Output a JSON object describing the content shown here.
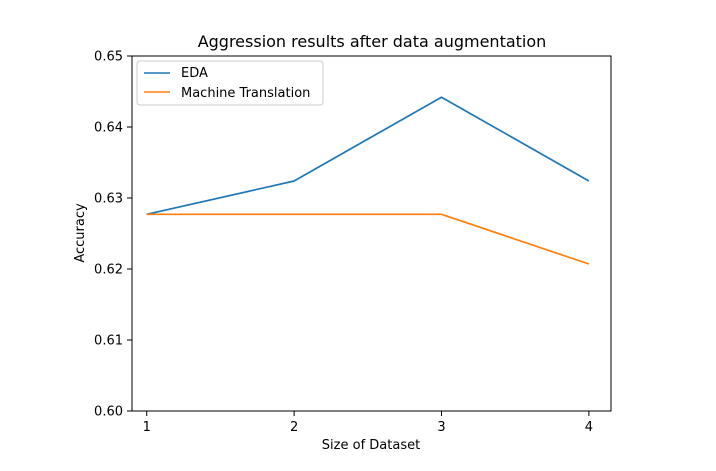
{
  "chart_data": {
    "type": "line",
    "title": "Aggression results after data augmentation",
    "xlabel": "Size of Dataset",
    "ylabel": "Accuracy",
    "x": [
      1,
      2,
      3,
      4
    ],
    "xticks": [
      "1",
      "2",
      "3",
      "4"
    ],
    "yticks": [
      "0.60",
      "0.61",
      "0.62",
      "0.63",
      "0.64",
      "0.65"
    ],
    "xlim": [
      0.9,
      4.15
    ],
    "ylim": [
      0.6,
      0.65
    ],
    "series": [
      {
        "name": "EDA",
        "color": "#1f77b4",
        "values": [
          0.6277,
          0.6324,
          0.6442,
          0.6324
        ]
      },
      {
        "name": "Machine Translation",
        "color": "#ff7f0e",
        "values": [
          0.6277,
          0.6277,
          0.6277,
          0.6207
        ]
      }
    ],
    "legend": "top-left",
    "grid": false
  }
}
